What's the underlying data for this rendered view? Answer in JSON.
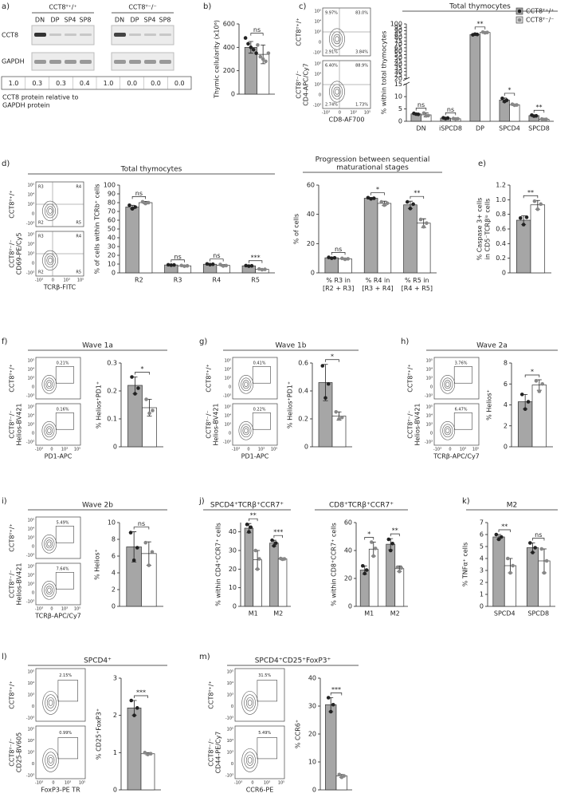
{
  "panel_labels": [
    "a)",
    "b)",
    "c)",
    "d)",
    "e)",
    "f)",
    "g)",
    "h)",
    "i)",
    "j)",
    "k)",
    "l)",
    "m)"
  ],
  "genotypes": [
    "CCT8ᵀ⁺/⁺",
    "CCT8ᵀ⁻/⁻"
  ],
  "blot": {
    "lanes": [
      "DN",
      "DP",
      "SP4",
      "SP8"
    ],
    "rows": [
      "CCT8",
      "GAPDH"
    ],
    "quantification": [
      "1.0",
      "0.3",
      "0.3",
      "0.4",
      "1.0",
      "0.0",
      "0.0",
      "0.0"
    ],
    "quantification_label": [
      "CCT8 protein relative to",
      "GAPDH protein"
    ]
  },
  "flow_ticks": {
    "x": [
      "-10³",
      "0",
      "10³",
      "10⁵"
    ],
    "y": [
      "-10³",
      "0",
      "10³",
      "10⁴",
      "10⁵"
    ]
  },
  "flow_plots": [
    {
      "y_label": "CD4-APC/Cy7",
      "x_label": "CD8-AF700",
      "gates": [
        [
          "9.97%",
          "83.0%",
          "2.91%",
          "3.84%"
        ],
        [
          "6.40%",
          "88.9%",
          "2.74%",
          "1.73%"
        ]
      ]
    },
    {
      "y_label": "CD69-PE/Cy5",
      "x_label": "TCRβ-FITC",
      "gates": [
        [
          "R3",
          "R4",
          "R2",
          "R5"
        ],
        [
          "R3",
          "R4",
          "R2",
          "R5"
        ]
      ]
    },
    {
      "y_label": "Helios-BV421",
      "x_label": "PD1-APC",
      "gates": [
        [
          "0.21%"
        ],
        [
          "0.16%"
        ]
      ]
    },
    {
      "y_label": "Helios-BV421",
      "x_label": "PD1-APC",
      "gates": [
        [
          "0.41%"
        ],
        [
          "0.22%"
        ]
      ]
    },
    {
      "y_label": "Helios-BV421",
      "x_label": "TCRβ-APC/Cy7",
      "gates": [
        [
          "3.76%"
        ],
        [
          "6.47%"
        ]
      ]
    },
    {
      "y_label": "Helios-BV421",
      "x_label": "TCRβ-APC/Cy7",
      "gates": [
        [
          "5.49%"
        ],
        [
          "7.64%"
        ]
      ]
    },
    {
      "y_label": "CD25-BV605",
      "x_label": "FoxP3-PE TR",
      "gates": [
        [
          "2.15%"
        ],
        [
          "0.99%"
        ]
      ]
    },
    {
      "y_label": "CD44-PE/Cy7",
      "x_label": "CCR6-PE",
      "gates": [
        [
          "31.5%"
        ],
        [
          "5.49%"
        ]
      ]
    }
  ],
  "chart_data": [
    {
      "type": "bar",
      "y_label": "Thymic cellularity (x10⁶)",
      "categories": [
        null
      ],
      "ylim": [
        0,
        600
      ],
      "yticks": [
        0,
        200,
        400,
        600
      ],
      "significance": [
        "ns"
      ],
      "series": [
        {
          "color": "#a6a6a6",
          "point_color": "#222222",
          "values": [
            400
          ],
          "errors": [
            50
          ],
          "points": [
            [
              480,
              430,
              400,
              380,
              350
            ]
          ]
        },
        {
          "color": "#ffffff",
          "point_color": "#888888",
          "values": [
            340
          ],
          "errors": [
            80
          ],
          "points": [
            [
              420,
              320,
              300,
              280,
              350
            ]
          ]
        }
      ]
    },
    {
      "type": "bar",
      "title": "Total thymocytes",
      "y_label": "% within total thymocytes",
      "categories": [
        "DN",
        "iSPCD8",
        "DP",
        "SPCD4",
        "SPCD8"
      ],
      "ylim": [
        0,
        100
      ],
      "axis_break": [
        15,
        20
      ],
      "yticks": [
        0,
        5,
        10,
        15,
        20,
        25,
        30,
        35,
        40,
        45,
        50,
        55,
        60,
        65,
        70,
        75,
        80,
        85,
        90,
        95,
        100
      ],
      "legend": "top-right",
      "significance": [
        "ns",
        "ns",
        "**",
        "*",
        "**"
      ],
      "series": [
        {
          "name": "CCT8ᵀ⁺/⁺",
          "color": "#a6a6a6",
          "point_color": "#222222",
          "values": [
            3.0,
            1.3,
            84.5,
            8.6,
            2.3
          ],
          "errors": [
            0.3,
            0.2,
            1,
            0.8,
            0.2
          ],
          "points": [
            [
              3.2,
              2.9,
              2.8
            ],
            [
              1.4,
              1.1,
              1.3
            ],
            [
              84,
              85,
              84.5
            ],
            [
              9.3,
              8.0,
              8.5
            ],
            [
              2.5,
              2.1,
              2.2
            ]
          ]
        },
        {
          "name": "CCT8ᵀ⁻/⁻",
          "color": "#ffffff",
          "point_color": "#888888",
          "values": [
            2.6,
            1.0,
            87.5,
            6.7,
            0.8
          ],
          "errors": [
            0.8,
            0.2,
            1,
            0.3,
            0.1
          ],
          "points": [
            [
              3.3,
              2.2,
              2.3
            ],
            [
              1.1,
              0.9,
              1.0
            ],
            [
              88,
              87,
              87.5
            ],
            [
              6.9,
              6.5,
              6.6
            ],
            [
              0.9,
              0.7,
              0.8
            ]
          ]
        }
      ]
    },
    {
      "type": "bar",
      "title": "Total thymocytes",
      "y_label": "% of cells within TCRb⁺ cells",
      "categories": [
        "R2",
        "R3",
        "R4",
        "R5"
      ],
      "ylim": [
        0,
        100
      ],
      "yticks": [
        0,
        10,
        20,
        30,
        40,
        50,
        60,
        70,
        80,
        90,
        100
      ],
      "significance": [
        "ns",
        "ns",
        "ns",
        "***"
      ],
      "series": [
        {
          "color": "#a6a6a6",
          "point_color": "#222222",
          "values": [
            75,
            9,
            9.8,
            8
          ],
          "errors": [
            2,
            0.3,
            0.5,
            0.4
          ],
          "points": [
            [
              77,
              73,
              75
            ],
            [
              9.2,
              8.8,
              9
            ],
            [
              10.2,
              9.4,
              9.8
            ],
            [
              8.3,
              7.7,
              8
            ]
          ]
        },
        {
          "color": "#ffffff",
          "point_color": "#888888",
          "values": [
            80,
            8,
            8.5,
            4
          ],
          "errors": [
            1.5,
            0.5,
            1,
            0.5
          ],
          "points": [
            [
              81,
              79,
              80
            ],
            [
              8.4,
              7.6,
              8
            ],
            [
              9.5,
              7.8,
              8.3
            ],
            [
              4.4,
              3.6,
              4
            ]
          ]
        }
      ]
    },
    {
      "type": "bar",
      "title": [
        "Progression between sequential",
        "maturational stages"
      ],
      "y_label": "% of cells",
      "categories": [
        "% R3 in [R2 + R3]",
        "% R4 in [R3 + R4]",
        "% R5 in [R4 + R5]"
      ],
      "ylim": [
        0,
        60
      ],
      "yticks": [
        0,
        20,
        40,
        60
      ],
      "significance": [
        "ns",
        "*",
        "**"
      ],
      "series": [
        {
          "color": "#a6a6a6",
          "point_color": "#222222",
          "values": [
            10.3,
            51,
            46.5
          ],
          "errors": [
            0.4,
            0.5,
            2.5
          ],
          "points": [
            [
              10.6,
              10,
              10.3
            ],
            [
              51.4,
              50.6,
              51
            ],
            [
              48.5,
              44,
              47
            ]
          ]
        },
        {
          "color": "#ffffff",
          "point_color": "#888888",
          "values": [
            9.6,
            47.5,
            34
          ],
          "errors": [
            0.4,
            1.5,
            3
          ],
          "points": [
            [
              9.9,
              9.3,
              9.6
            ],
            [
              48.5,
              46.3,
              47.6
            ],
            [
              36.5,
              31.5,
              34
            ]
          ]
        }
      ]
    },
    {
      "type": "bar",
      "y_label": [
        "% Caspase 3+ cells",
        "in CD5⁻TCRβˡᵒ cells"
      ],
      "categories": [
        null
      ],
      "ylim": [
        0,
        1.2
      ],
      "yticks": [
        0,
        0.2,
        0.4,
        0.6,
        0.8,
        {
          "value": 1,
          "label": "1.0"
        },
        1.2
      ],
      "significance": [
        "**"
      ],
      "series": [
        {
          "color": "#a6a6a6",
          "point_color": "#222222",
          "values": [
            0.72
          ],
          "errors": [
            0.06
          ],
          "points": [
            [
              0.75,
              0.66,
              0.76
            ]
          ]
        },
        {
          "color": "#ffffff",
          "point_color": "#888888",
          "values": [
            0.93
          ],
          "errors": [
            0.06
          ],
          "points": [
            [
              0.98,
              0.87,
              0.94
            ]
          ]
        }
      ]
    },
    {
      "type": "bar",
      "title": "Wave 1a",
      "y_label": "% Helios⁺PD1⁺",
      "categories": [
        null
      ],
      "ylim": [
        0,
        0.3
      ],
      "yticks": [
        0,
        0.1,
        0.2,
        0.3
      ],
      "significance": [
        "*"
      ],
      "series": [
        {
          "color": "#a6a6a6",
          "point_color": "#222222",
          "values": [
            0.22
          ],
          "errors": [
            0.03
          ],
          "points": [
            [
              0.25,
              0.19,
              0.21
            ]
          ]
        },
        {
          "color": "#ffffff",
          "point_color": "#888888",
          "values": [
            0.14
          ],
          "errors": [
            0.03
          ],
          "points": [
            [
              0.17,
              0.12,
              0.13
            ]
          ]
        }
      ]
    },
    {
      "type": "bar",
      "title": "Wave 1b",
      "y_label": "% Helios⁺PD1⁺",
      "categories": [
        null
      ],
      "ylim": [
        0,
        0.6
      ],
      "yticks": [
        0,
        0.2,
        0.4,
        0.6
      ],
      "significance": [
        "*"
      ],
      "series": [
        {
          "color": "#a6a6a6",
          "point_color": "#222222",
          "values": [
            0.46
          ],
          "errors": [
            0.13
          ],
          "points": [
            [
              0.58,
              0.35,
              0.45
            ]
          ]
        },
        {
          "color": "#ffffff",
          "point_color": "#888888",
          "values": [
            0.22
          ],
          "errors": [
            0.03
          ],
          "points": [
            [
              0.25,
              0.2,
              0.21
            ]
          ]
        }
      ]
    },
    {
      "type": "bar",
      "title": "Wave 2a",
      "y_label": "% Helios⁺",
      "categories": [
        null
      ],
      "ylim": [
        0,
        8
      ],
      "yticks": [
        0,
        2,
        4,
        6,
        8
      ],
      "significance": [
        "*"
      ],
      "series": [
        {
          "color": "#a6a6a6",
          "point_color": "#222222",
          "values": [
            4.3
          ],
          "errors": [
            0.7
          ],
          "points": [
            [
              5.0,
              3.6,
              4.3
            ]
          ]
        },
        {
          "color": "#ffffff",
          "point_color": "#888888",
          "values": [
            5.9
          ],
          "errors": [
            0.5
          ],
          "points": [
            [
              6.3,
              5.3,
              6.0
            ]
          ]
        }
      ]
    },
    {
      "type": "bar",
      "title": "Wave 2b",
      "y_label": "% Helios⁺",
      "categories": [
        null
      ],
      "ylim": [
        0,
        10
      ],
      "yticks": [
        0,
        2,
        4,
        6,
        8,
        10
      ],
      "significance": [
        "ns"
      ],
      "series": [
        {
          "color": "#a6a6a6",
          "point_color": "#222222",
          "values": [
            7.1
          ],
          "errors": [
            1.8
          ],
          "points": [
            [
              8.8,
              5.5,
              7.0
            ]
          ]
        },
        {
          "color": "#ffffff",
          "point_color": "#888888",
          "values": [
            6.3
          ],
          "errors": [
            1.4
          ],
          "points": [
            [
              7.6,
              4.9,
              6.5
            ]
          ]
        }
      ]
    },
    {
      "type": "bar",
      "title": "SPCD4⁺TCRβ⁺CCR7⁺",
      "y_label": "% within CD4⁺CCR7⁺ cells",
      "categories": [
        "M1",
        "M2"
      ],
      "ylim": [
        0,
        45
      ],
      "yticks": [
        0,
        10,
        20,
        30,
        40
      ],
      "significance": [
        "**",
        "***"
      ],
      "series": [
        {
          "color": "#a6a6a6",
          "point_color": "#222222",
          "values": [
            42,
            34
          ],
          "errors": [
            2.5,
            1.5
          ],
          "points": [
            [
              44,
              40,
              42.5
            ],
            [
              35.5,
              32.5,
              34
            ]
          ]
        },
        {
          "color": "#ffffff",
          "point_color": "#888888",
          "values": [
            25,
            25.5
          ],
          "errors": [
            5,
            0.3
          ],
          "points": [
            [
              30,
              20,
              25.5
            ],
            [
              25.7,
              25.3,
              25.5
            ]
          ]
        }
      ]
    },
    {
      "type": "bar",
      "title": "CD8⁺TCRβ⁺CCR7⁺",
      "y_label": "% within CD8⁺CCR7⁺ cells",
      "categories": [
        "M1",
        "M2"
      ],
      "ylim": [
        0,
        60
      ],
      "yticks": [
        0,
        20,
        40,
        60
      ],
      "significance": [
        "*",
        "**"
      ],
      "series": [
        {
          "color": "#a6a6a6",
          "point_color": "#222222",
          "values": [
            26,
            44.5
          ],
          "errors": [
            3,
            4
          ],
          "points": [
            [
              29,
              23.5,
              26
            ],
            [
              48,
              40,
              45
            ]
          ]
        },
        {
          "color": "#ffffff",
          "point_color": "#888888",
          "values": [
            41,
            27
          ],
          "errors": [
            5,
            2
          ],
          "points": [
            [
              46,
              36,
              41.5
            ],
            [
              28,
              25,
              27.5
            ]
          ]
        }
      ]
    },
    {
      "type": "bar",
      "title": "M2",
      "y_label": "% TNFα⁺ cells",
      "categories": [
        "SPCD4",
        "SPCD8"
      ],
      "ylim": [
        0,
        7
      ],
      "yticks": [
        0,
        1,
        2,
        3,
        4,
        5,
        6,
        7
      ],
      "significance": [
        "**",
        "ns"
      ],
      "series": [
        {
          "color": "#a6a6a6",
          "point_color": "#222222",
          "values": [
            5.8,
            4.9
          ],
          "errors": [
            0.2,
            0.4
          ],
          "points": [
            [
              6.0,
              5.6,
              5.8
            ],
            [
              5.3,
              4.5,
              4.9
            ]
          ]
        },
        {
          "color": "#ffffff",
          "point_color": "#888888",
          "values": [
            3.4,
            3.8
          ],
          "errors": [
            0.6,
            1
          ],
          "points": [
            [
              4.0,
              2.8,
              3.4
            ],
            [
              4.8,
              2.8,
              3.8
            ]
          ]
        }
      ]
    },
    {
      "type": "bar",
      "title": "SPCD4⁺",
      "y_label": "% CD25⁺FoxP3⁺",
      "categories": [
        null
      ],
      "ylim": [
        0,
        3
      ],
      "yticks": [
        0,
        1,
        2,
        3
      ],
      "significance": [
        "***"
      ],
      "series": [
        {
          "color": "#a6a6a6",
          "point_color": "#222222",
          "values": [
            2.2
          ],
          "errors": [
            0.2
          ],
          "points": [
            [
              2.4,
              2.0,
              2.2
            ]
          ]
        },
        {
          "color": "#ffffff",
          "point_color": "#888888",
          "values": [
            0.97
          ],
          "errors": [
            0.03
          ],
          "points": [
            [
              1.0,
              0.95,
              0.97
            ]
          ]
        }
      ]
    },
    {
      "type": "bar",
      "title": "SPCD4⁺CD25⁺FoxP3⁺",
      "y_label": "% CCR6⁺",
      "categories": [
        null
      ],
      "ylim": [
        0,
        40
      ],
      "yticks": [
        0,
        10,
        20,
        30,
        40
      ],
      "significance": [
        "***"
      ],
      "series": [
        {
          "color": "#a6a6a6",
          "point_color": "#222222",
          "values": [
            30.5
          ],
          "errors": [
            2.5
          ],
          "points": [
            [
              33,
              28,
              30.5
            ]
          ]
        },
        {
          "color": "#ffffff",
          "point_color": "#888888",
          "values": [
            5
          ],
          "errors": [
            0.5
          ],
          "points": [
            [
              5.5,
              4.5,
              5
            ]
          ]
        }
      ]
    }
  ]
}
